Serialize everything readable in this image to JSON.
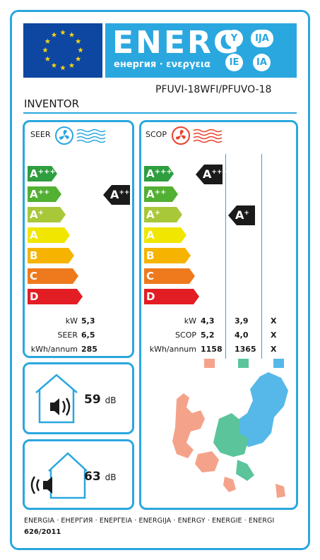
{
  "header": {
    "title": "ENERG",
    "subtitle": "енергия · ενεργεια",
    "languages": [
      "Y",
      "IJA",
      "IE",
      "IA"
    ]
  },
  "supplier": "INVENTOR",
  "model": "PFUVI-18WFI/PFUVO-18",
  "cooling": {
    "label": "SEER",
    "class": "A++",
    "kw_label": "kW",
    "kw": "5,3",
    "seer_label": "SEER",
    "seer": "6,5",
    "annual_label": "kWh/annum",
    "annual": "285"
  },
  "heating": {
    "label": "SCOP",
    "class_average": "A+++",
    "class_warmer": "A+",
    "kw_label": "kW",
    "scop_label": "SCOP",
    "annual_label": "kWh/annum",
    "kw": [
      "4,3",
      "3,9",
      "X"
    ],
    "scop": [
      "5,2",
      "4,0",
      "X"
    ],
    "annual": [
      "1158",
      "1365",
      "X"
    ],
    "zone_colors": [
      "#f4a38a",
      "#5bc49a",
      "#55b8e8"
    ]
  },
  "grades": [
    "A+++",
    "A++",
    "A+",
    "A",
    "B",
    "C",
    "D"
  ],
  "grade_colors": [
    "#2e9e3f",
    "#52b033",
    "#a8c83a",
    "#f1e600",
    "#f6b400",
    "#ee7a1d",
    "#e31d24"
  ],
  "noise": {
    "outdoor_value": "59",
    "outdoor_unit": "dB",
    "indoor_value": "63",
    "indoor_unit": "dB"
  },
  "footer": {
    "languages": "ENERGIA · ЕНЕРГИЯ · ΕΝΕΡΓΕΙΑ · ENERGIJA · ENERGY · ENERGIE · ENERGI",
    "regulation": "626/2011"
  }
}
